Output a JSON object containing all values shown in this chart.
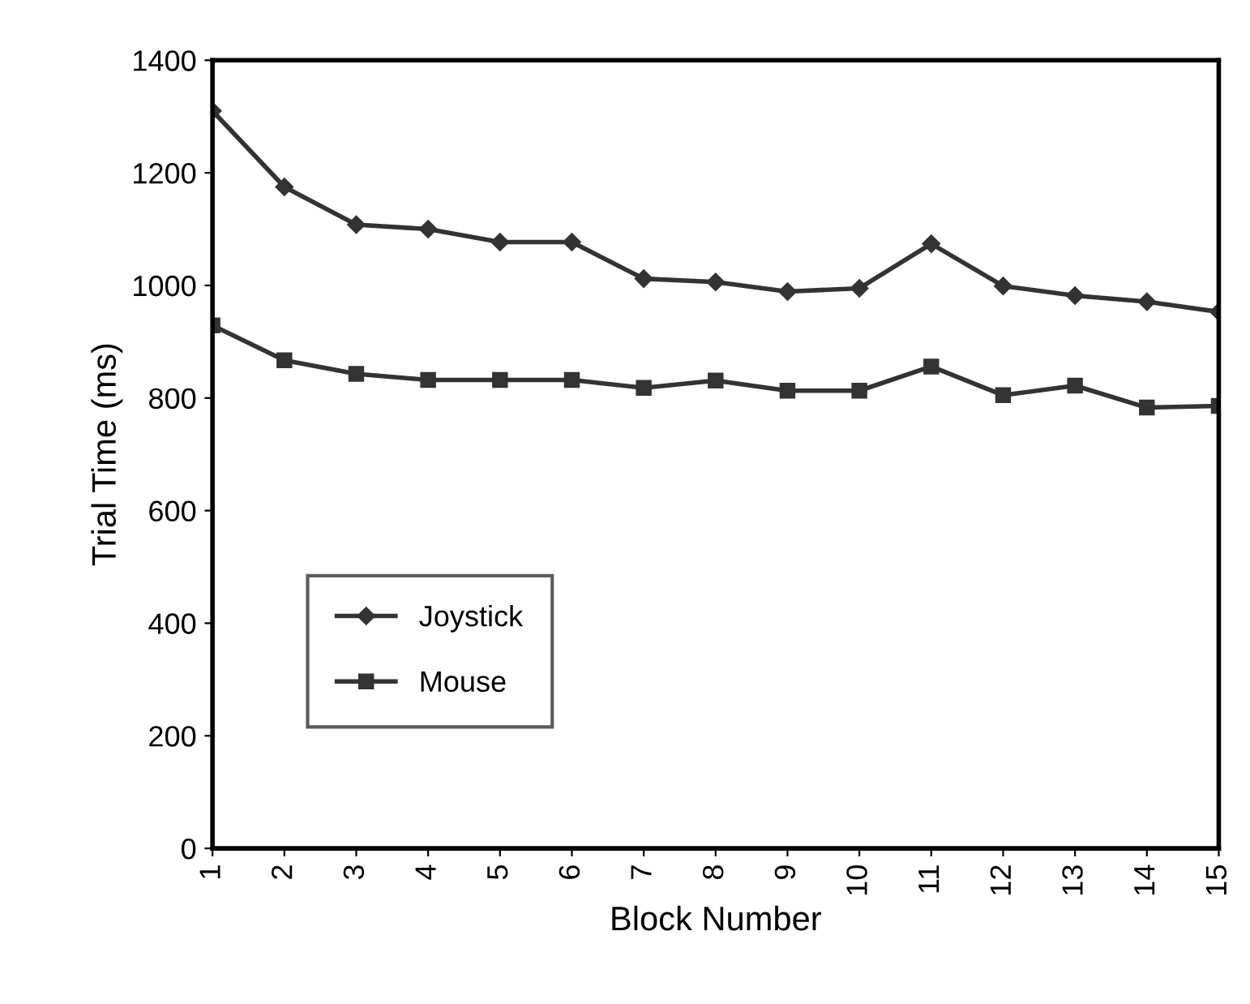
{
  "chart_data": {
    "type": "line",
    "xlabel": "Block Number",
    "ylabel": "Trial Time (ms)",
    "categories": [
      "1",
      "2",
      "3",
      "4",
      "5",
      "6",
      "7",
      "8",
      "9",
      "10",
      "11",
      "12",
      "13",
      "14",
      "15"
    ],
    "ylim": [
      0,
      1400
    ],
    "yticks": [
      0,
      200,
      400,
      600,
      800,
      1000,
      1200,
      1400
    ],
    "grid": false,
    "legend": "left",
    "series": [
      {
        "name": "Joystick",
        "color": "#333333",
        "marker": "diamond",
        "values": [
          1310,
          1175,
          1108,
          1100,
          1077,
          1077,
          1012,
          1006,
          989,
          995,
          1074,
          999,
          982,
          971,
          953
        ]
      },
      {
        "name": "Mouse",
        "color": "#333333",
        "marker": "square",
        "values": [
          929,
          867,
          843,
          832,
          832,
          832,
          818,
          831,
          813,
          813,
          856,
          805,
          822,
          783,
          786
        ]
      }
    ]
  }
}
